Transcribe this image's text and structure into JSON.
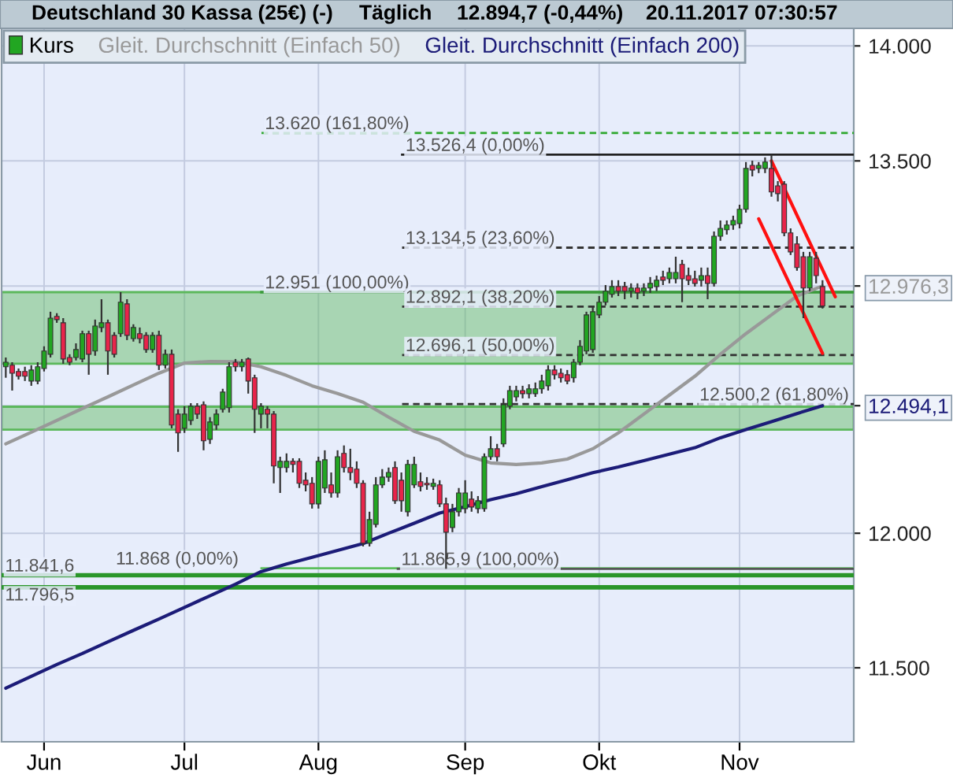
{
  "chart_data": {
    "type": "candlestick",
    "title": "Deutschland 30 Kassa (25€) (-)",
    "annotations": [
      "Täglich",
      "12.894,7 (-0,44%)",
      "20.11.2017 07:30:57"
    ],
    "categories": [
      null,
      null,
      null,
      null,
      null,
      null,
      "Jun",
      null,
      null,
      null,
      null,
      null,
      null,
      null,
      null,
      null,
      null,
      null,
      null,
      null,
      null,
      null,
      null,
      null,
      null,
      null,
      null,
      null,
      "Jul",
      null,
      null,
      null,
      null,
      null,
      null,
      null,
      null,
      null,
      null,
      null,
      null,
      null,
      null,
      null,
      null,
      null,
      null,
      null,
      null,
      "Aug",
      null,
      null,
      null,
      null,
      null,
      null,
      null,
      null,
      null,
      null,
      null,
      null,
      null,
      null,
      null,
      null,
      null,
      null,
      null,
      null,
      null,
      null,
      "Sep",
      null,
      null,
      null,
      null,
      null,
      null,
      null,
      null,
      null,
      null,
      null,
      null,
      null,
      null,
      null,
      null,
      null,
      null,
      null,
      null,
      "Okt",
      null,
      null,
      null,
      null,
      null,
      null,
      null,
      null,
      null,
      null,
      null,
      null,
      null,
      null,
      null,
      null,
      null,
      null,
      null,
      null,
      null,
      "Nov",
      null,
      null,
      null,
      null,
      null,
      null,
      null,
      null,
      null,
      null,
      null,
      null,
      null,
      null,
      null
    ],
    "series": [
      {
        "name": "Kurs",
        "colors": [
          "#22a622",
          "#e8244a",
          "#e8244a",
          "#e8244a",
          "#22a622",
          "#22a622",
          "#22a622",
          "#22a622",
          "#e8244a",
          "#e8244a",
          "#e8244a",
          "#22a622",
          "#22a622",
          "#e8244a",
          "#22a622",
          "#22a622",
          "#e8244a",
          "#e8244a",
          "#22a622",
          "#e8244a",
          "#22a622",
          "#e8244a",
          "#e8244a",
          "#22a622",
          "#e8244a",
          "#22a622",
          "#e8244a",
          "#e8244a",
          "#22a622",
          "#22a622",
          "#e8244a",
          "#e8244a",
          "#22a622",
          "#22a622",
          "#22a622",
          "#22a622",
          "#e8244a",
          "#22a622",
          "#e8244a",
          "#e8244a",
          "#22a622",
          "#e8244a",
          "#e8244a",
          "#22a622",
          "#22a622",
          "#e8244a",
          "#e8244a",
          "#e8244a",
          "#e8244a",
          "#22a622",
          "#22a622",
          "#e8244a",
          "#22a622",
          "#e8244a",
          "#e8244a",
          "#e8244a",
          "#e8244a",
          "#22a622",
          "#22a622",
          "#22a622",
          "#22a622",
          "#e8244a",
          "#e8244a",
          "#22a622",
          "#22a622",
          "#e8244a",
          "#e8244a",
          "#22a622",
          "#e8244a",
          "#e8244a",
          "#22a622",
          "#22a622",
          "#22a622",
          "#e8244a",
          "#22a622",
          "#22a622",
          "#22a622",
          "#e8244a",
          "#22a622",
          "#22a622",
          "#22a622",
          "#e8244a",
          "#22a622",
          "#22a622",
          "#22a622",
          "#22a622",
          "#e8244a",
          "#e8244a",
          "#e8244a",
          "#22a622",
          "#22a622",
          "#22a622",
          "#22a622",
          "#22a622",
          "#22a622",
          "#22a622",
          "#e8244a",
          "#e8244a",
          "#22a622",
          "#e8244a",
          "#22a622",
          "#22a622",
          "#22a622",
          "#e8244a",
          "#22a622",
          "#22a622",
          "#e8244a",
          "#e8244a",
          "#e8244a",
          "#22a622",
          "#e8244a",
          "#22a622",
          "#22a622",
          "#22a622",
          "#22a622",
          "#22a622",
          "#22a622",
          "#e8244a",
          "#22a622",
          "#22a622",
          "#e8244a",
          "#e8244a",
          "#e8244a",
          "#e8244a",
          "#e8244a",
          "#e8244a",
          "#22a622",
          "#e8244a",
          "#e8244a",
          null,
          null
        ],
        "ohlc": [
          [
            12649,
            12686,
            12605,
            12667
          ],
          [
            12655,
            12667,
            12554,
            12623
          ],
          [
            12630,
            12642,
            12598,
            12611
          ],
          [
            12630,
            12649,
            12592,
            12611
          ],
          [
            12592,
            12655,
            12573,
            12636
          ],
          [
            12592,
            12667,
            12579,
            12649
          ],
          [
            12642,
            12731,
            12630,
            12712
          ],
          [
            12699,
            12871,
            12686,
            12845
          ],
          [
            12852,
            12865,
            12826,
            12839
          ],
          [
            12826,
            12845,
            12661,
            12680
          ],
          [
            12686,
            12699,
            12655,
            12667
          ],
          [
            12686,
            12743,
            12674,
            12718
          ],
          [
            12680,
            12794,
            12667,
            12782
          ],
          [
            12782,
            12794,
            12617,
            12699
          ],
          [
            12712,
            12839,
            12693,
            12813
          ],
          [
            12807,
            12922,
            12788,
            12826
          ],
          [
            12826,
            12839,
            12617,
            12712
          ],
          [
            12775,
            12788,
            12686,
            12699
          ],
          [
            12782,
            12951,
            12769,
            12910
          ],
          [
            12903,
            12922,
            12756,
            12775
          ],
          [
            12762,
            12820,
            12750,
            12807
          ],
          [
            12782,
            12807,
            12743,
            12762
          ],
          [
            12775,
            12788,
            12705,
            12718
          ],
          [
            12718,
            12788,
            12705,
            12775
          ],
          [
            12775,
            12794,
            12636,
            12655
          ],
          [
            12655,
            12718,
            12642,
            12699
          ],
          [
            12699,
            12718,
            12405,
            12418
          ],
          [
            12461,
            12480,
            12313,
            12387
          ],
          [
            12405,
            12492,
            12387,
            12461
          ],
          [
            12436,
            12504,
            12418,
            12492
          ],
          [
            12492,
            12504,
            12442,
            12461
          ],
          [
            12498,
            12511,
            12319,
            12356
          ],
          [
            12362,
            12449,
            12344,
            12430
          ],
          [
            12418,
            12480,
            12399,
            12461
          ],
          [
            12480,
            12561,
            12467,
            12548
          ],
          [
            12486,
            12667,
            12467,
            12649
          ],
          [
            12667,
            12680,
            12630,
            12649
          ],
          [
            12649,
            12680,
            12630,
            12667
          ],
          [
            12680,
            12686,
            12542,
            12592
          ],
          [
            12605,
            12617,
            12387,
            12480
          ],
          [
            12461,
            12504,
            12405,
            12492
          ],
          [
            12480,
            12492,
            12405,
            12461
          ],
          [
            12461,
            12473,
            12191,
            12258
          ],
          [
            12252,
            12294,
            12154,
            12276
          ],
          [
            12252,
            12307,
            12233,
            12276
          ],
          [
            12276,
            12288,
            12233,
            12264
          ],
          [
            12276,
            12288,
            12173,
            12191
          ],
          [
            12203,
            12233,
            12160,
            12185
          ],
          [
            12191,
            12215,
            12094,
            12112
          ],
          [
            12112,
            12294,
            12094,
            12276
          ],
          [
            12173,
            12319,
            12154,
            12282
          ],
          [
            12185,
            12233,
            12136,
            12154
          ],
          [
            12154,
            12319,
            12136,
            12294
          ],
          [
            12307,
            12338,
            12233,
            12252
          ],
          [
            12252,
            12325,
            12203,
            12233
          ],
          [
            12246,
            12276,
            12173,
            12191
          ],
          [
            12191,
            12203,
            11950,
            11962
          ],
          [
            11962,
            12082,
            11950,
            12052
          ],
          [
            12034,
            12215,
            12022,
            12185
          ],
          [
            12185,
            12246,
            12173,
            12215
          ],
          [
            12215,
            12252,
            12197,
            12233
          ],
          [
            12252,
            12276,
            12112,
            12124
          ],
          [
            12203,
            12233,
            12082,
            12124
          ],
          [
            12082,
            12282,
            12064,
            12264
          ],
          [
            12185,
            12294,
            12173,
            12264
          ],
          [
            12197,
            12233,
            12160,
            12179
          ],
          [
            12191,
            12215,
            12166,
            12185
          ],
          [
            12179,
            12209,
            12166,
            12191
          ],
          [
            12185,
            12203,
            12100,
            12112
          ],
          [
            12112,
            12136,
            11865.9,
            12004
          ],
          [
            12022,
            12112,
            12004,
            12082
          ],
          [
            12082,
            12173,
            12064,
            12154
          ],
          [
            12094,
            12203,
            12076,
            12154
          ],
          [
            12130,
            12160,
            12082,
            12100
          ],
          [
            12094,
            12142,
            12076,
            12124
          ],
          [
            12094,
            12307,
            12082,
            12294
          ],
          [
            12294,
            12374,
            12282,
            12325
          ],
          [
            12325,
            12344,
            12276,
            12294
          ],
          [
            12344,
            12523,
            12332,
            12498
          ],
          [
            12492,
            12573,
            12480,
            12554
          ],
          [
            12529,
            12573,
            12511,
            12554
          ],
          [
            12554,
            12573,
            12523,
            12542
          ],
          [
            12542,
            12579,
            12523,
            12561
          ],
          [
            12542,
            12586,
            12529,
            12561
          ],
          [
            12561,
            12617,
            12542,
            12592
          ],
          [
            12573,
            12655,
            12554,
            12636
          ],
          [
            12636,
            12655,
            12598,
            12617
          ],
          [
            12623,
            12642,
            12586,
            12605
          ],
          [
            12617,
            12636,
            12579,
            12592
          ],
          [
            12605,
            12680,
            12586,
            12667
          ],
          [
            12667,
            12756,
            12655,
            12731
          ],
          [
            12712,
            12871,
            12699,
            12858
          ],
          [
            12718,
            12890,
            12705,
            12871
          ],
          [
            12858,
            12935,
            12845,
            12910
          ],
          [
            12910,
            12980,
            12897,
            12955
          ],
          [
            12942,
            13000,
            12929,
            12974
          ],
          [
            12974,
            13000,
            12935,
            12955
          ],
          [
            12974,
            12993,
            12922,
            12955
          ],
          [
            12955,
            12987,
            12929,
            12968
          ],
          [
            12968,
            12987,
            12922,
            12948
          ],
          [
            12955,
            12987,
            12935,
            12968
          ],
          [
            12968,
            13013,
            12948,
            12987
          ],
          [
            12974,
            13019,
            12955,
            13000
          ],
          [
            13013,
            13039,
            12980,
            13000
          ],
          [
            13006,
            13052,
            12987,
            13032
          ],
          [
            13006,
            13097,
            12987,
            13032
          ],
          [
            13065,
            13084,
            12910,
            13006
          ],
          [
            13019,
            13052,
            12980,
            13000
          ],
          [
            13006,
            13039,
            12974,
            12987
          ],
          [
            13000,
            13052,
            12974,
            13019
          ],
          [
            13019,
            13052,
            12922,
            12987
          ],
          [
            12987,
            13202,
            12974,
            13182
          ],
          [
            13182,
            13248,
            13163,
            13215
          ],
          [
            13209,
            13248,
            13189,
            13229
          ],
          [
            13229,
            13268,
            13209,
            13248
          ],
          [
            13235,
            13314,
            13215,
            13295
          ],
          [
            13295,
            13495,
            13281,
            13468
          ],
          [
            13481,
            13501,
            13434,
            13461
          ],
          [
            13468,
            13495,
            13448,
            13481
          ],
          [
            13468,
            13515,
            13448,
            13495
          ],
          [
            13468,
            13526.4,
            13348,
            13368
          ],
          [
            13394,
            13414,
            13328,
            13361
          ],
          [
            13401,
            13414,
            13182,
            13196
          ],
          [
            13196,
            13215,
            13104,
            13117
          ],
          [
            13150,
            13182,
            13039,
            13052
          ],
          [
            13097,
            13117,
            12845,
            12968
          ],
          [
            12968,
            13117,
            12955,
            13097
          ],
          [
            13091,
            13117,
            12987,
            13019
          ],
          [
            12974,
            13000,
            12884,
            12894.7
          ],
          null,
          null
        ]
      },
      {
        "name": "Gleit. Durchschnitt (Einfach 50)",
        "type": "line",
        "color": "#999999",
        "values": [
          12344,
          null,
          null,
          null,
          12390,
          null,
          null,
          null,
          12436,
          null,
          null,
          null,
          12483,
          null,
          null,
          null,
          12529,
          null,
          null,
          null,
          12576,
          null,
          null,
          null,
          12623,
          null,
          null,
          null,
          12664,
          null,
          null,
          null,
          12670,
          null,
          null,
          null,
          12669,
          null,
          null,
          null,
          12649,
          null,
          null,
          null,
          12614,
          null,
          null,
          null,
          12573,
          null,
          null,
          null,
          12542,
          null,
          null,
          null,
          12508,
          null,
          null,
          null,
          12449,
          null,
          null,
          null,
          12393,
          null,
          null,
          null,
          12359,
          null,
          null,
          null,
          12300,
          null,
          null,
          null,
          12270,
          null,
          null,
          null,
          12264,
          null,
          null,
          null,
          12270,
          null,
          null,
          null,
          12285,
          null,
          null,
          null,
          12325,
          null,
          null,
          null,
          12387,
          null,
          null,
          null,
          12461,
          null,
          null,
          null,
          12536,
          null,
          null,
          null,
          12611,
          null,
          null,
          null,
          12699,
          null,
          null,
          null,
          12782,
          null,
          null,
          null,
          12858,
          null,
          null,
          null,
          12935,
          null,
          null,
          null,
          12976.3,
          null,
          null
        ]
      },
      {
        "name": "Gleit. Durchschnitt (Einfach 200)",
        "type": "line",
        "color": "#1c1c78",
        "values": [
          11426,
          null,
          null,
          null,
          11469,
          null,
          null,
          null,
          11512,
          null,
          null,
          null,
          11552,
          null,
          null,
          null,
          11595,
          null,
          null,
          null,
          11637,
          null,
          null,
          null,
          11679,
          null,
          null,
          null,
          11722,
          null,
          null,
          null,
          11765,
          null,
          null,
          null,
          11808,
          null,
          null,
          null,
          11855,
          null,
          null,
          null,
          11884,
          null,
          null,
          null,
          11909,
          null,
          null,
          null,
          11935,
          null,
          null,
          null,
          11961,
          null,
          null,
          null,
          12000,
          null,
          null,
          null,
          12038,
          null,
          null,
          null,
          12077,
          null,
          null,
          null,
          12101,
          null,
          null,
          null,
          12128,
          null,
          null,
          null,
          12151,
          null,
          null,
          null,
          12178,
          null,
          null,
          null,
          12205,
          null,
          null,
          null,
          12232,
          null,
          null,
          null,
          12254,
          null,
          null,
          null,
          12279,
          null,
          null,
          null,
          12304,
          null,
          null,
          null,
          12329,
          null,
          null,
          null,
          12368,
          null,
          null,
          null,
          12400,
          null,
          null,
          null,
          12431,
          null,
          null,
          null,
          12463,
          null,
          null,
          null,
          12494.1,
          null,
          null
        ]
      },
      {
        "type": "line",
        "color": "#ff1010",
        "values": [
          null,
          null,
          null,
          null,
          null,
          null,
          null,
          null,
          null,
          null,
          null,
          null,
          null,
          null,
          null,
          null,
          null,
          null,
          null,
          null,
          null,
          null,
          null,
          null,
          null,
          null,
          null,
          null,
          null,
          null,
          null,
          null,
          null,
          null,
          null,
          null,
          null,
          null,
          null,
          null,
          null,
          null,
          null,
          null,
          null,
          null,
          null,
          null,
          null,
          null,
          null,
          null,
          null,
          null,
          null,
          null,
          null,
          null,
          null,
          null,
          null,
          null,
          null,
          null,
          null,
          null,
          null,
          null,
          null,
          null,
          null,
          null,
          null,
          null,
          null,
          null,
          null,
          null,
          null,
          null,
          null,
          null,
          null,
          null,
          null,
          null,
          null,
          null,
          null,
          null,
          null,
          null,
          null,
          null,
          null,
          null,
          null,
          null,
          null,
          null,
          null,
          null,
          null,
          null,
          null,
          null,
          null,
          null,
          null,
          null,
          null,
          null,
          null,
          null,
          null,
          null,
          null,
          null,
          null,
          null,
          13500,
          null,
          null,
          null,
          null,
          null,
          null,
          null,
          null,
          null,
          12932
        ]
      },
      {
        "type": "line",
        "color": "#ff1010",
        "values": [
          null,
          null,
          null,
          null,
          null,
          null,
          null,
          null,
          null,
          null,
          null,
          null,
          null,
          null,
          null,
          null,
          null,
          null,
          null,
          null,
          null,
          null,
          null,
          null,
          null,
          null,
          null,
          null,
          null,
          null,
          null,
          null,
          null,
          null,
          null,
          null,
          null,
          null,
          null,
          null,
          null,
          null,
          null,
          null,
          null,
          null,
          null,
          null,
          null,
          null,
          null,
          null,
          null,
          null,
          null,
          null,
          null,
          null,
          null,
          null,
          null,
          null,
          null,
          null,
          null,
          null,
          null,
          null,
          null,
          null,
          null,
          null,
          null,
          null,
          null,
          null,
          null,
          null,
          null,
          null,
          null,
          null,
          null,
          null,
          null,
          null,
          null,
          null,
          null,
          null,
          null,
          null,
          null,
          null,
          null,
          null,
          null,
          null,
          null,
          null,
          null,
          null,
          null,
          null,
          null,
          null,
          null,
          null,
          null,
          null,
          null,
          null,
          null,
          null,
          null,
          null,
          null,
          null,
          13255,
          null,
          null,
          null,
          null,
          null,
          null,
          null,
          null,
          null,
          12703,
          null,
          null
        ]
      }
    ],
    "ylim": [
      11234,
      14078
    ],
    "log": true,
    "yticks": [
      {
        "value": 11500,
        "label": "11.500"
      },
      {
        "value": 12000,
        "label": "12.000"
      },
      {
        "value": 12494.1,
        "label": "12.494,1"
      },
      {
        "value": 12976.3,
        "label": "12.976,3"
      },
      {
        "value": 13500,
        "label": "13.500"
      },
      {
        "value": 14000,
        "label": "14.000"
      }
    ],
    "grid": true,
    "legend": "top left",
    "ref_lines": [
      {
        "axis": "y",
        "value": 13620,
        "label": "13.620 (161,80%)",
        "color": "#2ea82e",
        "line_style": "dashed"
      },
      {
        "axis": "y",
        "value": 13526.4,
        "label": "13.526,4 (0,00%)",
        "color": "#222222",
        "line_style": "solid"
      },
      {
        "axis": "y",
        "value": 13134.5,
        "label": "13.134,5 (23,60%)",
        "color": "#333333",
        "line_style": "dashed"
      },
      {
        "axis": "y",
        "value": 12951,
        "label": "12.951 (100,00%)",
        "color": "#3a9a3a",
        "line_style": "solid"
      },
      {
        "axis": "y",
        "value": 12892.1,
        "label": "12.892,1 (38,20%)",
        "color": "#333333",
        "line_style": "dashed"
      },
      {
        "axis": "y",
        "value": 12696.1,
        "label": "12.696,1 (50,00%)",
        "color": "#333333",
        "line_style": "dashed"
      },
      {
        "axis": "y",
        "value": 12500.2,
        "label": "12.500,2 (61,80%)",
        "color": "#333333",
        "line_style": "dashed"
      },
      {
        "axis": "y",
        "value": 11868,
        "label": "11.868 (0,00%)",
        "color": "#5cbf5c",
        "line_style": "solid"
      },
      {
        "axis": "y",
        "value": 11865.9,
        "label": "11.865,9 (100,00%)",
        "color": "#555555",
        "line_style": "solid"
      },
      {
        "axis": "y",
        "value": 11841.6,
        "label": "11.841,6",
        "color": "#2a962a",
        "line_style": "solid"
      },
      {
        "axis": "y",
        "value": 11796.5,
        "label": "11.796,5",
        "color": "#2a962a",
        "line_style": "solid"
      }
    ],
    "bands": [
      {
        "axis": "y",
        "from": 12661,
        "to": 12951,
        "color": "#5cb85c"
      },
      {
        "axis": "y",
        "from": 12400,
        "to": 12490,
        "color": "#5cb85c"
      }
    ]
  }
}
